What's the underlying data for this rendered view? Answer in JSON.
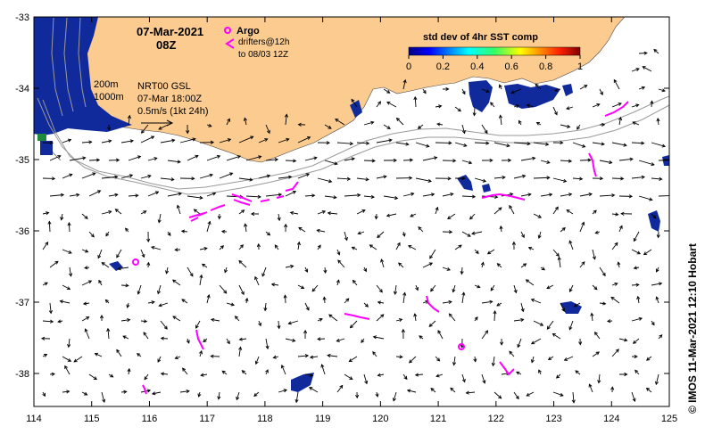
{
  "map": {
    "title_date": "07-Mar-2021",
    "title_time": "08Z",
    "argo_label": "Argo",
    "drifters_label": "drifters@12h",
    "drifters_until": "to 08/03 12Z",
    "contour_200": "200m",
    "contour_1000": "1000m",
    "product_line1": "NRT00 GSL",
    "product_line2": "07-Mar 18:00Z",
    "vector_scale": "0.5m/s (1kt 24h)",
    "credit": "© IMOS 11-Mar-2021 12:10 Hobart",
    "colorbar": {
      "title": "std dev of 4hr SST comp",
      "ticks": [
        "0",
        "0.2",
        "0.4",
        "0.6",
        "0.8",
        "1"
      ]
    },
    "x_ticks": [
      "114",
      "115",
      "116",
      "117",
      "118",
      "119",
      "120",
      "121",
      "122",
      "123",
      "124",
      "125"
    ],
    "y_ticks": [
      "-33",
      "-34",
      "-35",
      "-36",
      "-37",
      "-38"
    ],
    "colors": {
      "land": "#fccb8f",
      "drifter": "#ff00ff",
      "contour": "#9a9a9a",
      "sst_patch": "#102a9c"
    }
  }
}
